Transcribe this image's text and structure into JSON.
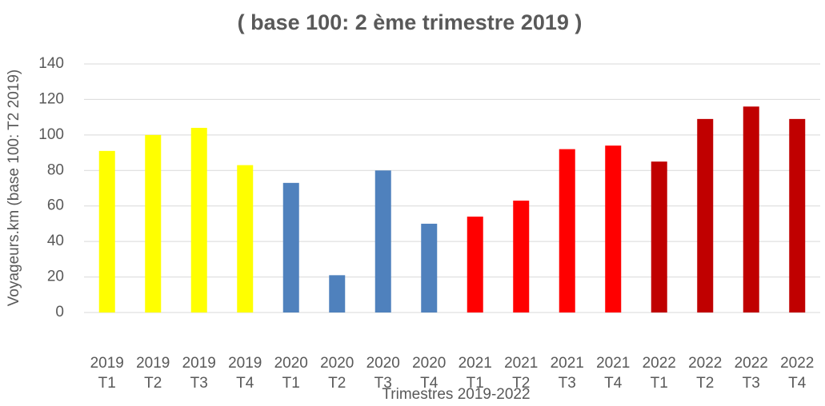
{
  "chart_data": {
    "type": "bar",
    "title": "( base 100: 2 ème trimestre 2019 )",
    "y_label": "Voyageurs.km  (base 100: T2 2019)",
    "x_label": "Trimestres 2019-2022",
    "categories": [
      "2019 T1",
      "2019 T2",
      "2019 T3",
      "2019 T4",
      "2020 T1",
      "2020 T2",
      "2020 T3",
      "2020 T4",
      "2021 T1",
      "2021 T2",
      "2021 T3",
      "2021 T4",
      "2022 T1",
      "2022 T2",
      "2022 T3",
      "2022 T4"
    ],
    "values": [
      91,
      100,
      104,
      83,
      73,
      21,
      80,
      50,
      54,
      63,
      92,
      94,
      85,
      109,
      116,
      109
    ],
    "colors": [
      "#ffff00",
      "#ffff00",
      "#ffff00",
      "#ffff00",
      "#4f81bd",
      "#4f81bd",
      "#4f81bd",
      "#4f81bd",
      "#ff0000",
      "#ff0000",
      "#ff0000",
      "#ff0000",
      "#c00000",
      "#c00000",
      "#c00000",
      "#c00000"
    ],
    "ylim": [
      0,
      140
    ],
    "yticks": [
      0,
      20,
      40,
      60,
      80,
      100,
      120,
      140
    ],
    "grid": true
  }
}
